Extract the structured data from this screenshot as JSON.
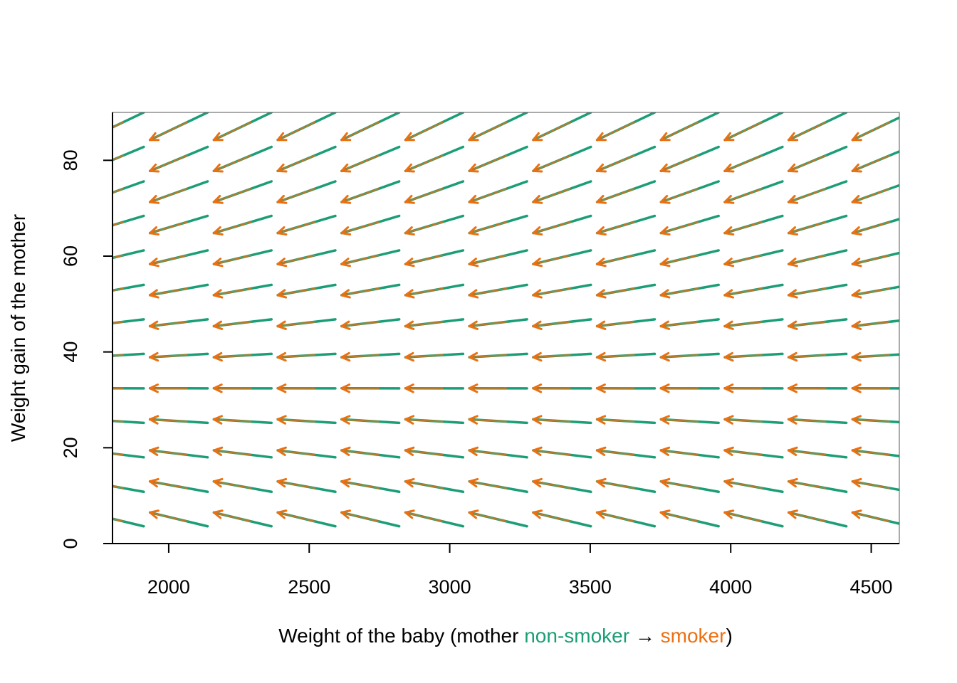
{
  "chart_data": {
    "type": "vector-field",
    "xlabel_parts": {
      "prefix": "Weight of the baby (mother ",
      "from": "non-smoker",
      "arrow": " → ",
      "to": "smoker",
      "suffix": ")"
    },
    "ylabel": "Weight gain of the mother",
    "xlim": [
      1800,
      4600
    ],
    "ylim": [
      0,
      90
    ],
    "x_ticks": [
      2000,
      2500,
      3000,
      3500,
      4000,
      4500
    ],
    "x_tick_labels": [
      "2000",
      "2500",
      "3000",
      "3500",
      "4000",
      "4500"
    ],
    "y_ticks": [
      0,
      20,
      40,
      60,
      80
    ],
    "y_tick_labels": [
      "0",
      "20",
      "40",
      "60",
      "80"
    ],
    "from_color": "#1b9e77",
    "to_color": "#ed6f0f",
    "grid": false,
    "legend": "none",
    "arrow_grid": {
      "x_start": 1911.1,
      "x_step": 227.3,
      "columns": 13,
      "y_start": 3.6,
      "y_step": 7.2,
      "rows": 13,
      "pivot_y": 32.5,
      "dx": -205,
      "dy_slope": -0.1
    }
  }
}
